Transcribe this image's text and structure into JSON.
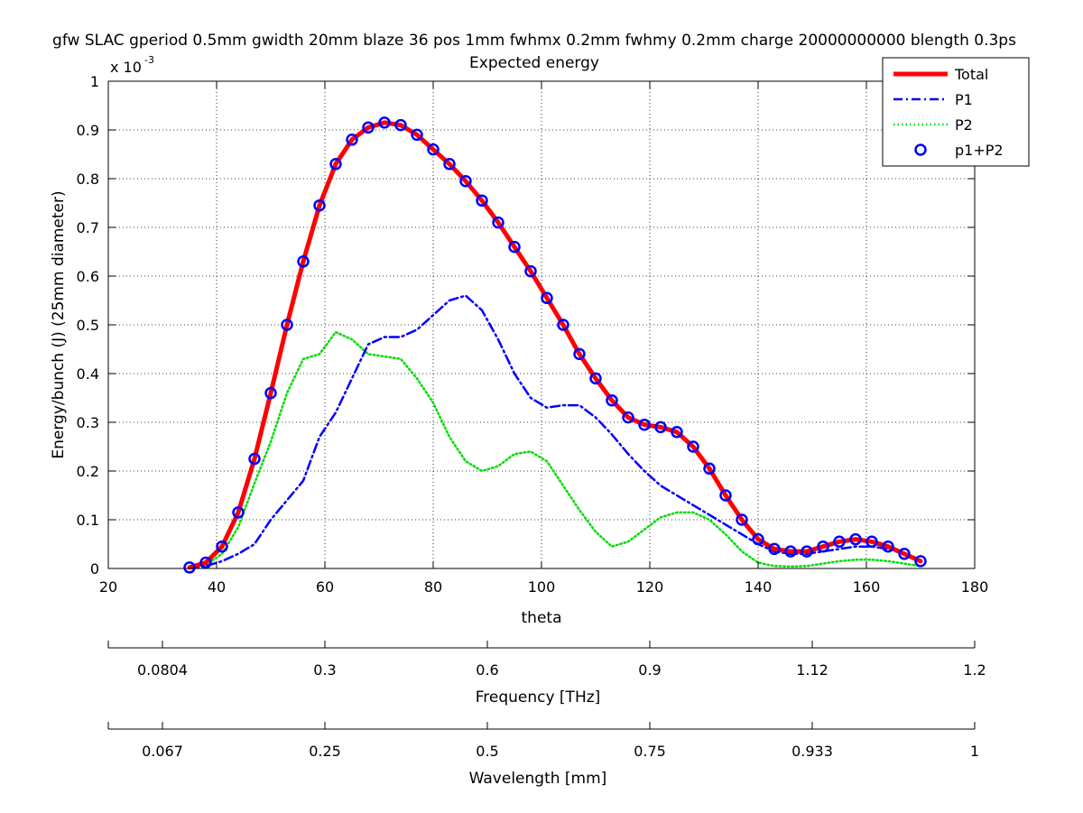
{
  "chart_data": {
    "type": "line",
    "title": "gfw SLAC gperiod 0.5mm gwidth 20mm blaze 36 pos 1mm fwhmx 0.2mm fwhmy 0.2mm charge 20000000000 blength 0.3ps",
    "subtitle": "Expected energy",
    "xlabel": "theta",
    "ylabel": "Energy/bunch (J) (25mm diameter)",
    "y_exponent_prefix": "x 10",
    "y_exponent_power": "-3",
    "xlim": [
      20,
      180
    ],
    "ylim": [
      0,
      1
    ],
    "grid": true,
    "legend_position": "top-right",
    "x_ticks": [
      20,
      40,
      60,
      80,
      100,
      120,
      140,
      160,
      180
    ],
    "y_ticks": [
      0,
      0.1,
      0.2,
      0.3,
      0.4,
      0.5,
      0.6,
      0.7,
      0.8,
      0.9,
      1
    ],
    "x_tick_labels": [
      "20",
      "40",
      "60",
      "80",
      "100",
      "120",
      "140",
      "160",
      "180"
    ],
    "y_tick_labels": [
      "0",
      "0.1",
      "0.2",
      "0.3",
      "0.4",
      "0.5",
      "0.6",
      "0.7",
      "0.8",
      "0.9",
      "1"
    ],
    "series": [
      {
        "name": "Total",
        "color": "#ff0000",
        "style": "solid",
        "x": [
          35,
          38,
          41,
          44,
          47,
          50,
          53,
          56,
          59,
          62,
          65,
          68,
          71,
          74,
          77,
          80,
          83,
          86,
          89,
          92,
          95,
          98,
          101,
          104,
          107,
          110,
          113,
          116,
          119,
          122,
          125,
          128,
          131,
          134,
          137,
          140,
          143,
          146,
          149,
          152,
          155,
          158,
          161,
          164,
          167,
          170
        ],
        "y": [
          0.002,
          0.012,
          0.045,
          0.115,
          0.225,
          0.36,
          0.5,
          0.63,
          0.745,
          0.83,
          0.88,
          0.905,
          0.915,
          0.91,
          0.89,
          0.86,
          0.83,
          0.795,
          0.755,
          0.71,
          0.66,
          0.61,
          0.555,
          0.5,
          0.44,
          0.39,
          0.345,
          0.31,
          0.295,
          0.29,
          0.28,
          0.25,
          0.205,
          0.15,
          0.1,
          0.06,
          0.04,
          0.035,
          0.035,
          0.045,
          0.055,
          0.06,
          0.055,
          0.045,
          0.03,
          0.015
        ]
      },
      {
        "name": "P1",
        "color": "#0000ff",
        "style": "dashdot",
        "x": [
          35,
          38,
          41,
          44,
          47,
          50,
          53,
          56,
          59,
          62,
          65,
          68,
          71,
          74,
          77,
          80,
          83,
          86,
          89,
          92,
          95,
          98,
          101,
          104,
          107,
          110,
          113,
          116,
          119,
          122,
          125,
          128,
          131,
          134,
          137,
          140,
          143,
          146,
          149,
          152,
          155,
          158,
          161,
          164,
          167,
          170
        ],
        "y": [
          0.0,
          0.005,
          0.015,
          0.03,
          0.05,
          0.1,
          0.14,
          0.18,
          0.27,
          0.32,
          0.39,
          0.46,
          0.475,
          0.475,
          0.49,
          0.52,
          0.55,
          0.56,
          0.53,
          0.47,
          0.4,
          0.35,
          0.33,
          0.335,
          0.335,
          0.31,
          0.275,
          0.235,
          0.2,
          0.17,
          0.15,
          0.13,
          0.11,
          0.09,
          0.07,
          0.05,
          0.035,
          0.03,
          0.03,
          0.035,
          0.04,
          0.045,
          0.045,
          0.04,
          0.03,
          0.015
        ]
      },
      {
        "name": "P2",
        "color": "#00dd00",
        "style": "dotted",
        "x": [
          35,
          38,
          41,
          44,
          47,
          50,
          53,
          56,
          59,
          62,
          65,
          68,
          71,
          74,
          77,
          80,
          83,
          86,
          89,
          92,
          95,
          98,
          101,
          104,
          107,
          110,
          113,
          116,
          119,
          122,
          125,
          128,
          131,
          134,
          137,
          140,
          143,
          146,
          149,
          152,
          155,
          158,
          161,
          164,
          167,
          170
        ],
        "y": [
          0.002,
          0.007,
          0.03,
          0.085,
          0.175,
          0.26,
          0.36,
          0.43,
          0.44,
          0.485,
          0.47,
          0.44,
          0.435,
          0.43,
          0.39,
          0.34,
          0.27,
          0.22,
          0.2,
          0.21,
          0.235,
          0.24,
          0.22,
          0.17,
          0.12,
          0.075,
          0.045,
          0.055,
          0.08,
          0.105,
          0.115,
          0.115,
          0.1,
          0.07,
          0.035,
          0.012,
          0.005,
          0.004,
          0.005,
          0.01,
          0.015,
          0.018,
          0.018,
          0.015,
          0.01,
          0.005
        ]
      },
      {
        "name": "p1+P2",
        "color": "#0000ff",
        "style": "markers",
        "x": [
          35,
          38,
          41,
          44,
          47,
          50,
          53,
          56,
          59,
          62,
          65,
          68,
          71,
          74,
          77,
          80,
          83,
          86,
          89,
          92,
          95,
          98,
          101,
          104,
          107,
          110,
          113,
          116,
          119,
          122,
          125,
          128,
          131,
          134,
          137,
          140,
          143,
          146,
          149,
          152,
          155,
          158,
          161,
          164,
          167,
          170
        ],
        "y": [
          0.002,
          0.012,
          0.045,
          0.115,
          0.225,
          0.36,
          0.5,
          0.63,
          0.745,
          0.83,
          0.88,
          0.905,
          0.915,
          0.91,
          0.89,
          0.86,
          0.83,
          0.795,
          0.755,
          0.71,
          0.66,
          0.61,
          0.555,
          0.5,
          0.44,
          0.39,
          0.345,
          0.31,
          0.295,
          0.29,
          0.28,
          0.25,
          0.205,
          0.15,
          0.1,
          0.06,
          0.04,
          0.035,
          0.035,
          0.045,
          0.055,
          0.06,
          0.055,
          0.045,
          0.03,
          0.015
        ]
      }
    ],
    "secondary_axes": [
      {
        "label": "Frequency [THz]",
        "tick_labels": [
          "0.0804",
          "0.3",
          "0.6",
          "0.9",
          "1.12",
          "1.2"
        ],
        "tick_positions_theta": [
          30,
          60,
          90,
          120,
          150,
          180
        ]
      },
      {
        "label": "Wavelength [mm]",
        "tick_labels": [
          "0.067",
          "0.25",
          "0.5",
          "0.75",
          "0.933",
          "1"
        ],
        "tick_positions_theta": [
          30,
          60,
          90,
          120,
          150,
          180
        ]
      }
    ]
  }
}
